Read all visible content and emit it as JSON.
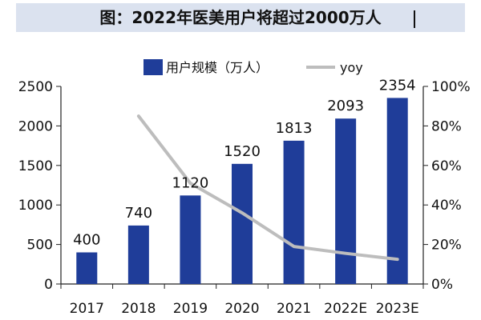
{
  "title": "图：2022年医美用户将超过2000万人",
  "chart_data": {
    "type": "bar",
    "title": "图：2022年医美用户将超过2000万人",
    "categories": [
      "2017",
      "2018",
      "2019",
      "2020",
      "2021",
      "2022E",
      "2023E"
    ],
    "series": [
      {
        "name": "用户规模（万人）",
        "type": "bar",
        "axis": "left",
        "values": [
          400,
          740,
          1120,
          1520,
          1813,
          2093,
          2354
        ]
      },
      {
        "name": "yoy",
        "type": "line",
        "axis": "right",
        "values": [
          null,
          0.85,
          0.51,
          0.36,
          0.19,
          0.155,
          0.125
        ]
      }
    ],
    "y_left": {
      "min": 0,
      "max": 2500,
      "ticks": [
        0,
        500,
        1000,
        1500,
        2000,
        2500
      ]
    },
    "y_right": {
      "min": 0,
      "max": 1.0,
      "ticks": [
        "0%",
        "20%",
        "40%",
        "60%",
        "80%",
        "100%"
      ]
    },
    "legend_position": "top",
    "grid": false,
    "colors": {
      "bar": "#1f3d99",
      "line": "#bdbdbd",
      "title_band": "#dbe2ef"
    }
  }
}
